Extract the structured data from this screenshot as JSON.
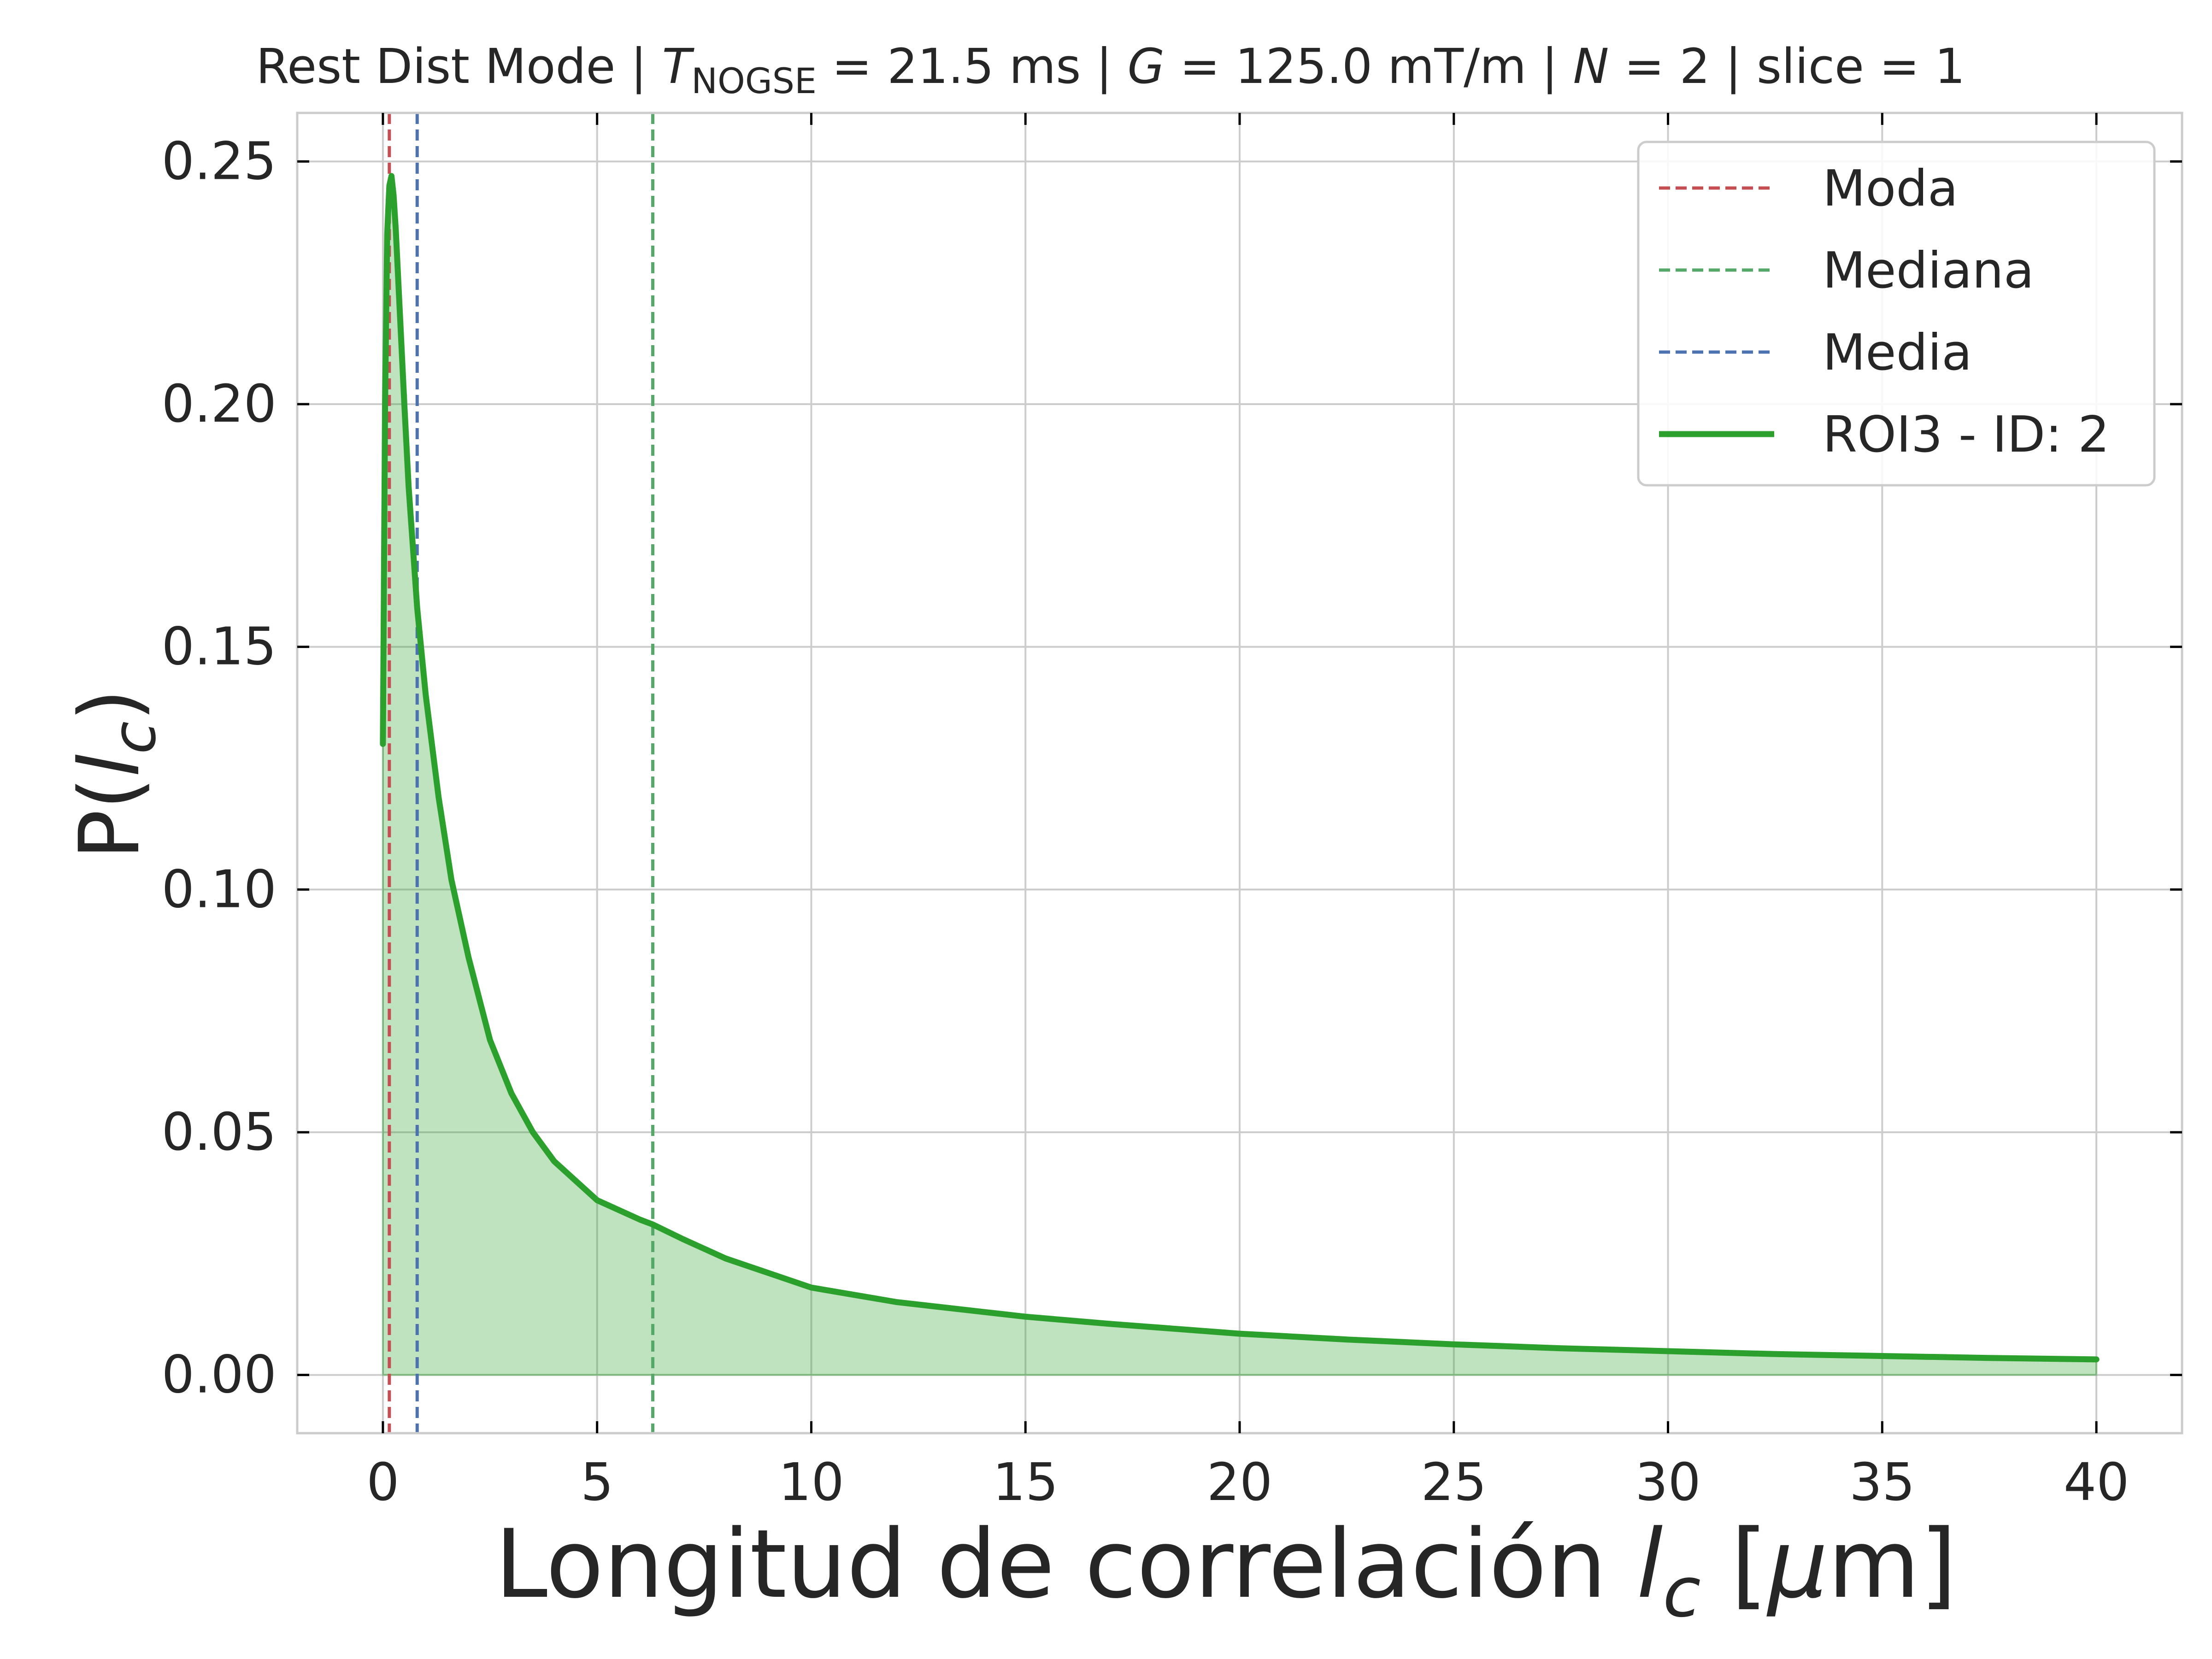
{
  "title": {
    "prefix": "Rest Dist Mode | ",
    "t_symbol": "T",
    "t_subscript": "NOGSE",
    "t_value": " = 21.5 ms | ",
    "g_symbol": "G",
    "g_value": " = 125.0 mT/m | ",
    "n_symbol": "N",
    "n_value": " = 2 | slice = 1"
  },
  "xlabel": {
    "text": "Longitud de correlación ",
    "symbol": "l",
    "subscript": "c",
    "unit_open": " [",
    "mu": "μ",
    "unit_close": "m]"
  },
  "ylabel": {
    "prefix": "P(",
    "symbol": "l",
    "subscript": "c",
    "suffix": ")"
  },
  "legend": {
    "placement": "upper-right",
    "items": [
      {
        "label": "Moda",
        "color": "#c44e52",
        "style": "dashed"
      },
      {
        "label": "Mediana",
        "color": "#55a868",
        "style": "dashed"
      },
      {
        "label": "Media",
        "color": "#4c72b0",
        "style": "dashed"
      },
      {
        "label": "ROI3 - ID: 2",
        "color": "#2ca02c",
        "style": "solid"
      }
    ]
  },
  "chart_data": {
    "type": "area",
    "xlim": [
      -2,
      42
    ],
    "ylim": [
      -0.012,
      0.26
    ],
    "xticks": [
      0,
      5,
      10,
      15,
      20,
      25,
      30,
      35,
      40
    ],
    "xtick_labels": [
      "0",
      "5",
      "10",
      "15",
      "20",
      "25",
      "30",
      "35",
      "40"
    ],
    "yticks": [
      0.0,
      0.05,
      0.1,
      0.15,
      0.2,
      0.25
    ],
    "ytick_labels": [
      "0.00",
      "0.05",
      "0.10",
      "0.15",
      "0.20",
      "0.25"
    ],
    "grid": true,
    "series": [
      {
        "name": "ROI3 - ID: 2",
        "color": "#2ca02c",
        "fill_color": "#2ca02c",
        "fill_alpha": 0.3,
        "x": [
          0.0,
          0.05,
          0.1,
          0.15,
          0.2,
          0.25,
          0.3,
          0.4,
          0.5,
          0.6,
          0.8,
          1.0,
          1.3,
          1.6,
          2.0,
          2.5,
          3.0,
          3.5,
          4.0,
          5.0,
          6.0,
          6.3,
          7.0,
          8.0,
          9.0,
          10.0,
          12.0,
          14.0,
          15.0,
          17.0,
          20.0,
          22.5,
          25.0,
          27.5,
          30.0,
          32.5,
          35.0,
          37.5,
          40.0
        ],
        "y": [
          0.13,
          0.2,
          0.235,
          0.245,
          0.247,
          0.243,
          0.236,
          0.218,
          0.2,
          0.183,
          0.158,
          0.14,
          0.119,
          0.102,
          0.086,
          0.069,
          0.058,
          0.05,
          0.044,
          0.036,
          0.032,
          0.031,
          0.028,
          0.024,
          0.021,
          0.018,
          0.015,
          0.013,
          0.012,
          0.0105,
          0.0085,
          0.0073,
          0.0063,
          0.0055,
          0.0049,
          0.0043,
          0.0039,
          0.0035,
          0.0032
        ]
      }
    ],
    "vlines": [
      {
        "name": "Moda",
        "x": 0.15,
        "color": "#c44e52"
      },
      {
        "name": "Mediana",
        "x": 6.3,
        "color": "#55a868"
      },
      {
        "name": "Media",
        "x": 0.8,
        "color": "#4c72b0"
      }
    ]
  }
}
